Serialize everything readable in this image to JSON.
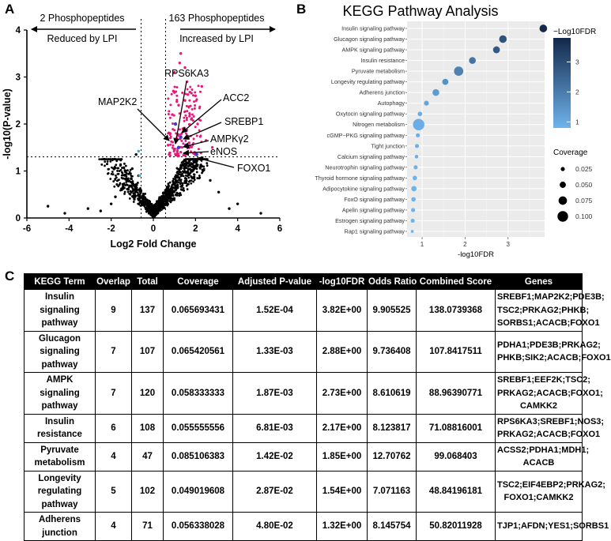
{
  "panels": {
    "a": "A",
    "b": "B",
    "c": "C"
  },
  "volcano": {
    "left_header": "2 Phosphopeptides",
    "left_sub": "Reduced by LPI",
    "right_header": "163 Phosphopeptides",
    "right_sub": "Increased by LPI",
    "gene_labels": [
      "RPS6KA3",
      "ACC2",
      "MAP2K2",
      "SREBP1",
      "AMPKγ2",
      "eNOS",
      "FOXO1"
    ]
  },
  "chart_data": [
    {
      "type": "scatter",
      "title": "",
      "xlabel": "Log2 Fold Change",
      "ylabel": "-log10(P-value)",
      "xlim": [
        -6,
        6
      ],
      "ylim": [
        0,
        4
      ],
      "xticks": [
        "-6",
        "-4",
        "-2",
        "0",
        "2",
        "4",
        "6"
      ],
      "yticks": [
        "0",
        "1",
        "2",
        "3",
        "4"
      ],
      "thresholds": {
        "x": [
          -0.58,
          0.58
        ],
        "y": 1.3
      },
      "grid": false,
      "colors": {
        "not_significant": "#000000",
        "increased": "#e8177a",
        "reduced": "#3ab0c0",
        "labeled": "#3b3bd8"
      },
      "series": [
        {
          "values": [
            [
              1.3,
              3.5
            ],
            [
              1.5,
              3.2
            ],
            [
              1.0,
              3.1
            ],
            [
              1.6,
              2.9
            ],
            [
              2.0,
              2.6
            ],
            [
              2.3,
              2.8
            ],
            [
              1.2,
              2.4
            ],
            [
              0.9,
              2.2
            ],
            [
              1.8,
              2.1
            ],
            [
              2.1,
              2.0
            ],
            [
              1.4,
              1.9
            ],
            [
              0.8,
              1.8
            ],
            [
              1.1,
              1.7
            ],
            [
              1.7,
              1.6
            ],
            [
              2.5,
              1.65
            ],
            [
              0.7,
              1.55
            ],
            [
              1.0,
              1.45
            ],
            [
              1.3,
              1.4
            ],
            [
              1.9,
              1.38
            ],
            [
              0.75,
              1.35
            ],
            [
              2.8,
              1.5
            ],
            [
              1.5,
              2.5
            ],
            [
              0.95,
              2.7
            ],
            [
              1.25,
              3.3
            ]
          ]
        },
        {
          "values": [
            [
              -1.0,
              1.05
            ],
            [
              -0.82,
              1.35
            ],
            [
              -1.5,
              0.6
            ],
            [
              -2.0,
              0.3
            ],
            [
              -3.1,
              0.2
            ],
            [
              -5.0,
              0.25
            ],
            [
              -2.5,
              0.15
            ],
            [
              -0.9,
              0.4
            ],
            [
              -1.2,
              0.8
            ],
            [
              -0.7,
              0.9
            ],
            [
              -4.2,
              0.1
            ],
            [
              4.0,
              0.3
            ],
            [
              3.1,
              0.55
            ],
            [
              2.7,
              0.8
            ],
            [
              3.6,
              0.2
            ],
            [
              5.1,
              0.1
            ],
            [
              2.3,
              1.1
            ],
            [
              1.7,
              1.2
            ],
            [
              -1.8,
              0.45
            ]
          ]
        },
        {
          "values": [
            [
              -0.7,
              1.42
            ],
            [
              -0.65,
              0.9
            ]
          ]
        }
      ]
    },
    {
      "type": "scatter",
      "title": "KEGG Pathway Analysis",
      "xlabel": "-log10FDR",
      "ylabel": "",
      "xlim": [
        0.65,
        3.85
      ],
      "xticks": [
        "1",
        "2",
        "3"
      ],
      "grid": true,
      "legend": "right",
      "colorbar": {
        "title": "−Log10FDR",
        "ticks": [
          "1",
          "2",
          "3"
        ],
        "min": 0.8,
        "max": 3.8,
        "color_low": "#6fb3ec",
        "color_high": "#13284a"
      },
      "size_legend": {
        "title": "Coverage",
        "values": [
          "0.025",
          "0.050",
          "0.075",
          "0.100"
        ]
      },
      "categories": [
        "Insulin signaling pathway",
        "Glucagon signaling pathway",
        "AMPK signaling pathway",
        "Insulin resistance",
        "Pyruvate metabolism",
        "Longevity regulating pathway",
        "Adherens junction",
        "Autophagy",
        "Oxytocin signaling pathway",
        "Nitrogen metabolism",
        "cGMP−PKG signaling pathway",
        "Tight junction",
        "Calcium signaling pathway",
        "Neurotrophin signaling pathway",
        "Thyroid hormone signaling pathway",
        "Adipocytokine signaling pathway",
        "FoxO signaling pathway",
        "Apelin signaling pathway",
        "Estrogen signaling pathway",
        "Rap1 signaling pathway"
      ],
      "x": [
        3.82,
        2.88,
        2.73,
        2.17,
        1.85,
        1.54,
        1.32,
        1.1,
        0.95,
        0.92,
        0.9,
        0.88,
        0.87,
        0.85,
        0.83,
        0.81,
        0.8,
        0.79,
        0.78,
        0.77
      ],
      "coverage": [
        0.066,
        0.065,
        0.058,
        0.056,
        0.085,
        0.049,
        0.056,
        0.035,
        0.03,
        0.11,
        0.025,
        0.025,
        0.02,
        0.025,
        0.03,
        0.04,
        0.03,
        0.025,
        0.025,
        0.012
      ]
    }
  ],
  "table": {
    "headers": [
      "KEGG Term",
      "Overlap",
      "Total",
      "Coverage",
      "Adjusted P-value",
      "-log10FDR",
      "Odds Ratio",
      "Combined Score",
      "Genes"
    ],
    "rows": [
      {
        "term": "Insulin signaling pathway",
        "overlap": "9",
        "total": "137",
        "coverage": "0.065693431",
        "padj": "1.52E-04",
        "fdr": "3.82E+00",
        "odds": "9.905525",
        "score": "138.0739368",
        "genes": "SREBF1;MAP2K2;PDE3B; TSC2;PRKAG2;PHKB; SORBS1;ACACB;FOXO1"
      },
      {
        "term": "Glucagon signaling pathway",
        "overlap": "7",
        "total": "107",
        "coverage": "0.065420561",
        "padj": "1.33E-03",
        "fdr": "2.88E+00",
        "odds": "9.736408",
        "score": "107.8417511",
        "genes": "PDHA1;PDE3B;PRKAG2; PHKB;SIK2;ACACB;FOXO1"
      },
      {
        "term": "AMPK signaling pathway",
        "overlap": "7",
        "total": "120",
        "coverage": "0.058333333",
        "padj": "1.87E-03",
        "fdr": "2.73E+00",
        "odds": "8.610619",
        "score": "88.96390771",
        "genes": "SREBF1;EEF2K;TSC2; PRKAG2;ACACB;FOXO1; CAMKK2"
      },
      {
        "term": "Insulin resistance",
        "overlap": "6",
        "total": "108",
        "coverage": "0.055555556",
        "padj": "6.81E-03",
        "fdr": "2.17E+00",
        "odds": "8.123817",
        "score": "71.08816001",
        "genes": "RPS6KA3;SREBF1;NOS3; PRKAG2;ACACB;FOXO1"
      },
      {
        "term": "Pyruvate metabolism",
        "overlap": "4",
        "total": "47",
        "coverage": "0.085106383",
        "padj": "1.42E-02",
        "fdr": "1.85E+00",
        "odds": "12.70762",
        "score": "99.068403",
        "genes": "ACSS2;PDHA1;MDH1; ACACB"
      },
      {
        "term": "Longevity regulating pathway",
        "overlap": "5",
        "total": "102",
        "coverage": "0.049019608",
        "padj": "2.87E-02",
        "fdr": "1.54E+00",
        "odds": "7.071163",
        "score": "48.84196181",
        "genes": "TSC2;EIF4EBP2;PRKAG2; FOXO1;CAMKK2"
      },
      {
        "term": "Adherens junction",
        "overlap": "4",
        "total": "71",
        "coverage": "0.056338028",
        "padj": "4.80E-02",
        "fdr": "1.32E+00",
        "odds": "8.145754",
        "score": "50.82011928",
        "genes": "TJP1;AFDN;YES1;SORBS1"
      }
    ]
  }
}
